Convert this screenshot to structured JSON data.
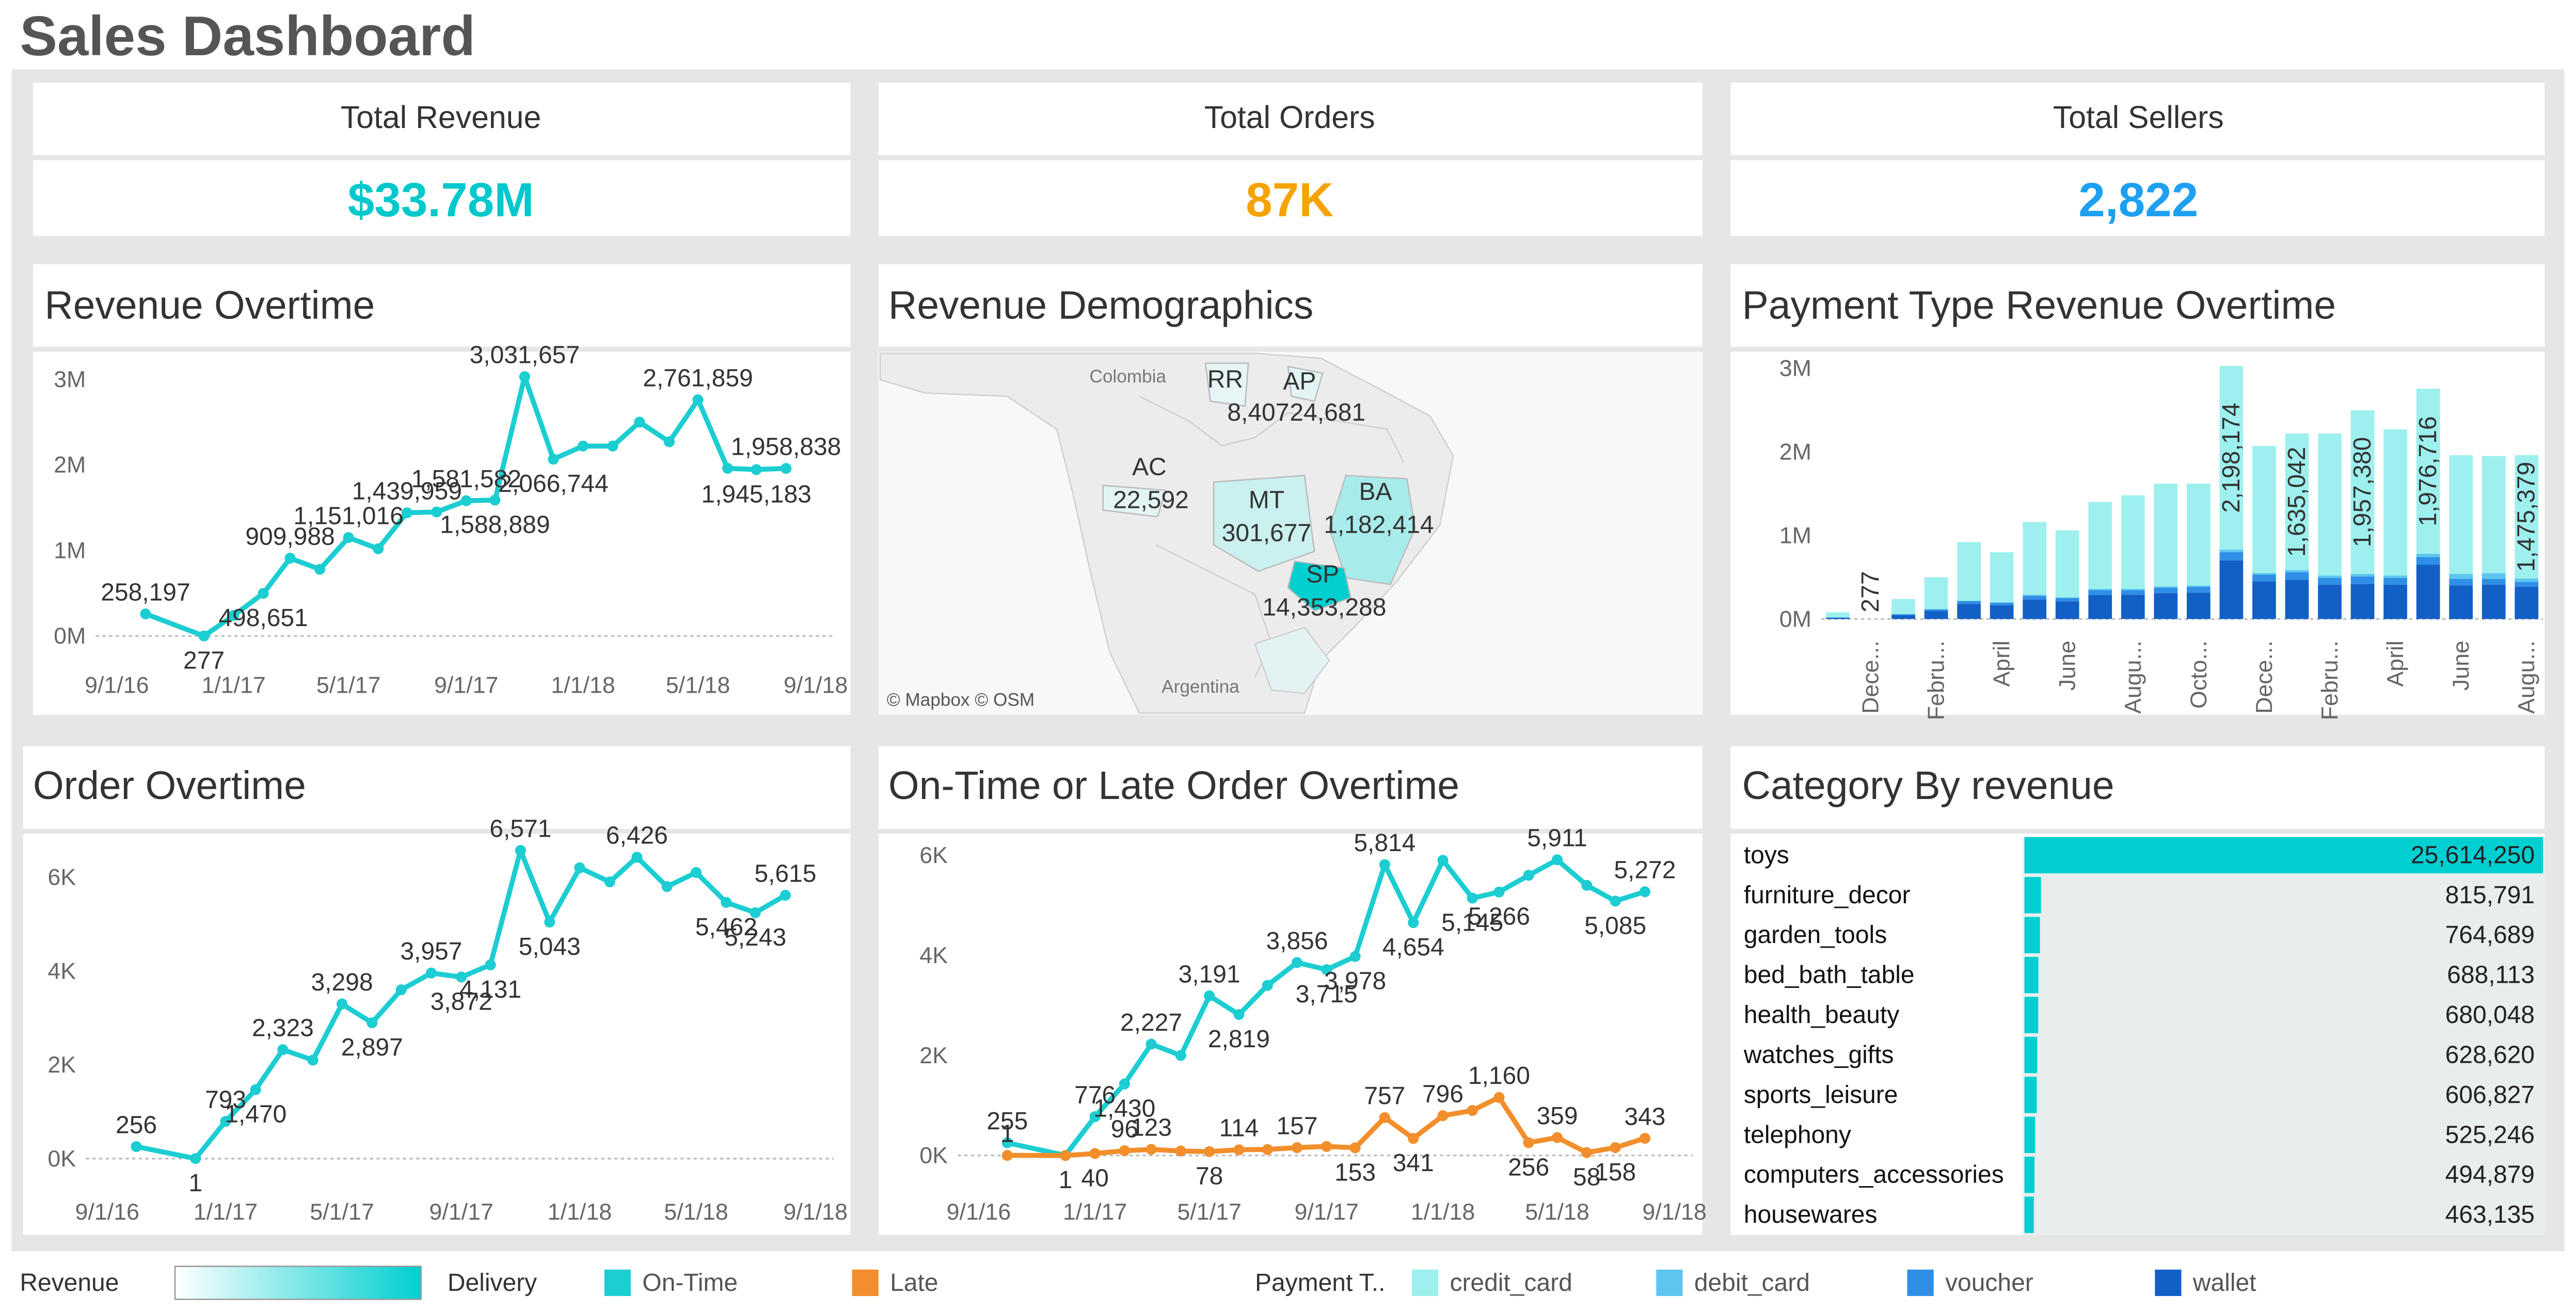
{
  "title": "Sales Dashboard",
  "kpis": [
    {
      "label": "Total Revenue",
      "value": "$33.78M",
      "color": "#00c8cc"
    },
    {
      "label": "Total Orders",
      "value": "87K",
      "color": "#f5a300"
    },
    {
      "label": "Total Sellers",
      "value": "2,822",
      "color": "#1ea0f0"
    }
  ],
  "chart_data": [
    {
      "type": "line",
      "title": "Revenue Overtime",
      "color": "#1ccdd2",
      "x": [
        "2016-10-01",
        "2016-12-01",
        "2017-01-01",
        "2017-02-01",
        "2017-03-01",
        "2017-04-01",
        "2017-05-01",
        "2017-06-01",
        "2017-07-01",
        "2017-08-01",
        "2017-09-01",
        "2017-10-01",
        "2017-11-01",
        "2017-12-01",
        "2018-01-01",
        "2018-02-01",
        "2018-03-01",
        "2018-04-01",
        "2018-05-01",
        "2018-06-01",
        "2018-07-01",
        "2018-08-01"
      ],
      "values": [
        258197,
        277,
        240000,
        498651,
        909988,
        780000,
        1151016,
        1020000,
        1439959,
        1450000,
        1581582,
        1588889,
        3031657,
        2066744,
        2220000,
        2220000,
        2500000,
        2270000,
        2761859,
        1960000,
        1945183,
        1958838
      ],
      "value_labels": [
        "258,197",
        "277",
        null,
        "498,651",
        "909,988",
        null,
        "1,151,016",
        null,
        "1,439,959",
        null,
        "1,581,582",
        "1,588,889",
        "3,031,657",
        "2,066,744",
        null,
        null,
        null,
        null,
        "2,761,859",
        null,
        "1,945,183",
        "1,958,838"
      ],
      "xlim": [
        "2016-08-10",
        "2018-09-20"
      ],
      "xticks": [
        {
          "value": "2016-09-01",
          "label": "9/1/16"
        },
        {
          "value": "2017-01-01",
          "label": "1/1/17"
        },
        {
          "value": "2017-05-01",
          "label": "5/1/17"
        },
        {
          "value": "2017-09-01",
          "label": "9/1/17"
        },
        {
          "value": "2018-01-01",
          "label": "1/1/18"
        },
        {
          "value": "2018-05-01",
          "label": "5/1/18"
        },
        {
          "value": "2018-09-01",
          "label": "9/1/18"
        }
      ],
      "ylim": [
        -150000,
        3150000
      ],
      "yticks": [
        {
          "value": 0,
          "label": "0M"
        },
        {
          "value": 1000000,
          "label": "1M"
        },
        {
          "value": 2000000,
          "label": "2M"
        },
        {
          "value": 3000000,
          "label": "3M"
        }
      ]
    },
    {
      "type": "map",
      "title": "Revenue Demographics",
      "legend_title": "Revenue",
      "color": "#00cfcf",
      "categories": [
        "RR",
        "AP",
        "AC",
        "MT",
        "BA",
        "SP"
      ],
      "values": [
        8407,
        24681,
        22592,
        301677,
        1182414,
        14353288
      ],
      "value_labels": [
        "8,407",
        "24,681",
        "22,592",
        "301,677",
        "1,182,414",
        "14,353,288"
      ],
      "place_labels": [
        "Colombia",
        "Argentina"
      ],
      "attribution": "© Mapbox © OSM"
    },
    {
      "type": "bar",
      "stacked": true,
      "title": "Payment Type Revenue Overtime",
      "legend_title": "Payment T..",
      "categories": [
        null,
        "Dece...",
        null,
        "Febru...",
        null,
        "April",
        null,
        "June",
        null,
        "Augu...",
        null,
        "Octo...",
        null,
        "Dece...",
        null,
        "Febru...",
        null,
        "April",
        null,
        "June",
        null,
        "Augu..."
      ],
      "series": [
        {
          "name": "credit_card",
          "color": "#9ef0ee",
          "values": [
            60000,
            277,
            180000,
            380000,
            700000,
            600000,
            870000,
            800000,
            1040000,
            1120000,
            1230000,
            1220000,
            2198174,
            1520000,
            1635042,
            1700000,
            1957380,
            1750000,
            1976716,
            1420000,
            1400000,
            1475379
          ],
          "value_labels": [
            null,
            "277",
            null,
            null,
            null,
            null,
            null,
            null,
            null,
            null,
            null,
            null,
            "2,198,174",
            null,
            "1,635,042",
            null,
            "1,957,380",
            null,
            "1,976,716",
            null,
            null,
            "1,475,379"
          ]
        },
        {
          "name": "debit_card",
          "color": "#5cc6f0",
          "values": [
            2000,
            0,
            3000,
            5000,
            8000,
            7000,
            12000,
            9000,
            14000,
            15000,
            15000,
            16000,
            30000,
            20000,
            25000,
            30000,
            30000,
            30000,
            40000,
            60000,
            70000,
            40000
          ]
        },
        {
          "name": "voucher",
          "color": "#2f8fe6",
          "values": [
            3000,
            0,
            12000,
            20000,
            32000,
            30000,
            45000,
            40000,
            60000,
            55000,
            65000,
            70000,
            100000,
            80000,
            90000,
            80000,
            90000,
            80000,
            90000,
            80000,
            70000,
            60000
          ]
        },
        {
          "name": "wallet",
          "color": "#1260c6",
          "values": [
            15000,
            0,
            45000,
            95000,
            180000,
            163000,
            233000,
            211000,
            286000,
            290000,
            310000,
            314000,
            700000,
            450000,
            470000,
            410000,
            420000,
            410000,
            650000,
            400000,
            410000,
            385000
          ]
        }
      ],
      "ylim": [
        -100000,
        3100000
      ],
      "yticks": [
        {
          "value": 0,
          "label": "0M"
        },
        {
          "value": 1000000,
          "label": "1M"
        },
        {
          "value": 2000000,
          "label": "2M"
        },
        {
          "value": 3000000,
          "label": "3M"
        }
      ]
    },
    {
      "type": "line",
      "title": "Order Overtime",
      "color": "#1ccdd2",
      "x": [
        "2016-10-01",
        "2016-12-01",
        "2017-01-01",
        "2017-02-01",
        "2017-03-01",
        "2017-04-01",
        "2017-05-01",
        "2017-06-01",
        "2017-07-01",
        "2017-08-01",
        "2017-09-01",
        "2017-10-01",
        "2017-11-01",
        "2017-12-01",
        "2018-01-01",
        "2018-02-01",
        "2018-03-01",
        "2018-04-01",
        "2018-05-01",
        "2018-06-01",
        "2018-07-01",
        "2018-08-01"
      ],
      "values": [
        256,
        1,
        793,
        1470,
        2323,
        2100,
        3298,
        2897,
        3600,
        3957,
        3872,
        4131,
        6571,
        5043,
        6200,
        5900,
        6426,
        5800,
        6100,
        5462,
        5243,
        5615
      ],
      "value_labels": [
        "256",
        "1",
        "793",
        "1,470",
        "2,323",
        null,
        "3,298",
        "2,897",
        null,
        "3,957",
        "3,872",
        "4,131",
        "6,571",
        "5,043",
        null,
        null,
        "6,426",
        null,
        null,
        "5,462",
        "5,243",
        "5,615"
      ],
      "xlim": [
        "2016-08-10",
        "2018-09-20"
      ],
      "xticks": [
        {
          "value": "2016-09-01",
          "label": "9/1/16"
        },
        {
          "value": "2017-01-01",
          "label": "1/1/17"
        },
        {
          "value": "2017-05-01",
          "label": "5/1/17"
        },
        {
          "value": "2017-09-01",
          "label": "9/1/17"
        },
        {
          "value": "2018-01-01",
          "label": "1/1/18"
        },
        {
          "value": "2018-05-01",
          "label": "5/1/18"
        },
        {
          "value": "2018-09-01",
          "label": "9/1/18"
        }
      ],
      "ylim": [
        -360,
        6680
      ],
      "yticks": [
        {
          "value": 0,
          "label": "0K"
        },
        {
          "value": 2000,
          "label": "2K"
        },
        {
          "value": 4000,
          "label": "4K"
        },
        {
          "value": 6000,
          "label": "6K"
        }
      ]
    },
    {
      "type": "line",
      "title": "On-Time or Late Order Overtime",
      "legend_title": "Delivery",
      "x": [
        "2016-10-01",
        "2016-12-01",
        "2017-01-01",
        "2017-02-01",
        "2017-03-01",
        "2017-04-01",
        "2017-05-01",
        "2017-06-01",
        "2017-07-01",
        "2017-08-01",
        "2017-09-01",
        "2017-10-01",
        "2017-11-01",
        "2017-12-01",
        "2018-01-01",
        "2018-02-01",
        "2018-03-01",
        "2018-04-01",
        "2018-05-01",
        "2018-06-01",
        "2018-07-01",
        "2018-08-01"
      ],
      "series": [
        {
          "name": "On-Time",
          "color": "#1ccdd2",
          "values": [
            255,
            1,
            776,
            1430,
            2227,
            2000,
            3191,
            2819,
            3400,
            3856,
            3715,
            3978,
            5814,
            4654,
            5900,
            5145,
            5266,
            5600,
            5911,
            5400,
            5085,
            5272
          ],
          "value_labels": [
            "255",
            "1",
            "776",
            "1,430",
            "2,227",
            null,
            "3,191",
            "2,819",
            null,
            "3,856",
            "3,715",
            "3,978",
            "5,814",
            "4,654",
            null,
            "5,145",
            "5,266",
            null,
            "5,911",
            null,
            "5,085",
            "5,272"
          ]
        },
        {
          "name": "Late",
          "color": "#f28e2b",
          "values": [
            1,
            0,
            40,
            96,
            123,
            90,
            78,
            114,
            120,
            157,
            180,
            153,
            757,
            341,
            796,
            900,
            1160,
            256,
            359,
            58,
            158,
            343
          ],
          "value_labels": [
            "1",
            null,
            "40",
            "96",
            "123",
            null,
            "78",
            "114",
            null,
            "157",
            null,
            "153",
            "757",
            "341",
            "796",
            null,
            "1,160",
            "256",
            "359",
            "58",
            "158",
            "343"
          ]
        }
      ],
      "xlim": [
        "2016-08-10",
        "2018-09-20"
      ],
      "xticks": [
        {
          "value": "2016-09-01",
          "label": "9/1/16"
        },
        {
          "value": "2017-01-01",
          "label": "1/1/17"
        },
        {
          "value": "2017-05-01",
          "label": "5/1/17"
        },
        {
          "value": "2017-09-01",
          "label": "9/1/17"
        },
        {
          "value": "2018-01-01",
          "label": "1/1/18"
        },
        {
          "value": "2018-05-01",
          "label": "5/1/18"
        },
        {
          "value": "2018-09-01",
          "label": "9/1/18"
        }
      ],
      "ylim": [
        -400,
        6200
      ],
      "yticks": [
        {
          "value": 0,
          "label": "0K"
        },
        {
          "value": 2000,
          "label": "2K"
        },
        {
          "value": 4000,
          "label": "4K"
        },
        {
          "value": 6000,
          "label": "6K"
        }
      ]
    },
    {
      "type": "bar",
      "orientation": "horizontal",
      "title": "Category By revenue",
      "color": "#00cfd2",
      "categories": [
        "toys",
        "furniture_decor",
        "garden_tools",
        "bed_bath_table",
        "health_beauty",
        "watches_gifts",
        "sports_leisure",
        "telephony",
        "computers_accessories",
        "housewares"
      ],
      "values": [
        25614250,
        815791,
        764689,
        688113,
        680048,
        628620,
        606827,
        525246,
        494879,
        463135
      ],
      "value_labels": [
        "25,614,250",
        "815,791",
        "764,689",
        "688,113",
        "680,048",
        "628,620",
        "606,827",
        "525,246",
        "494,879",
        "463,135"
      ]
    }
  ]
}
